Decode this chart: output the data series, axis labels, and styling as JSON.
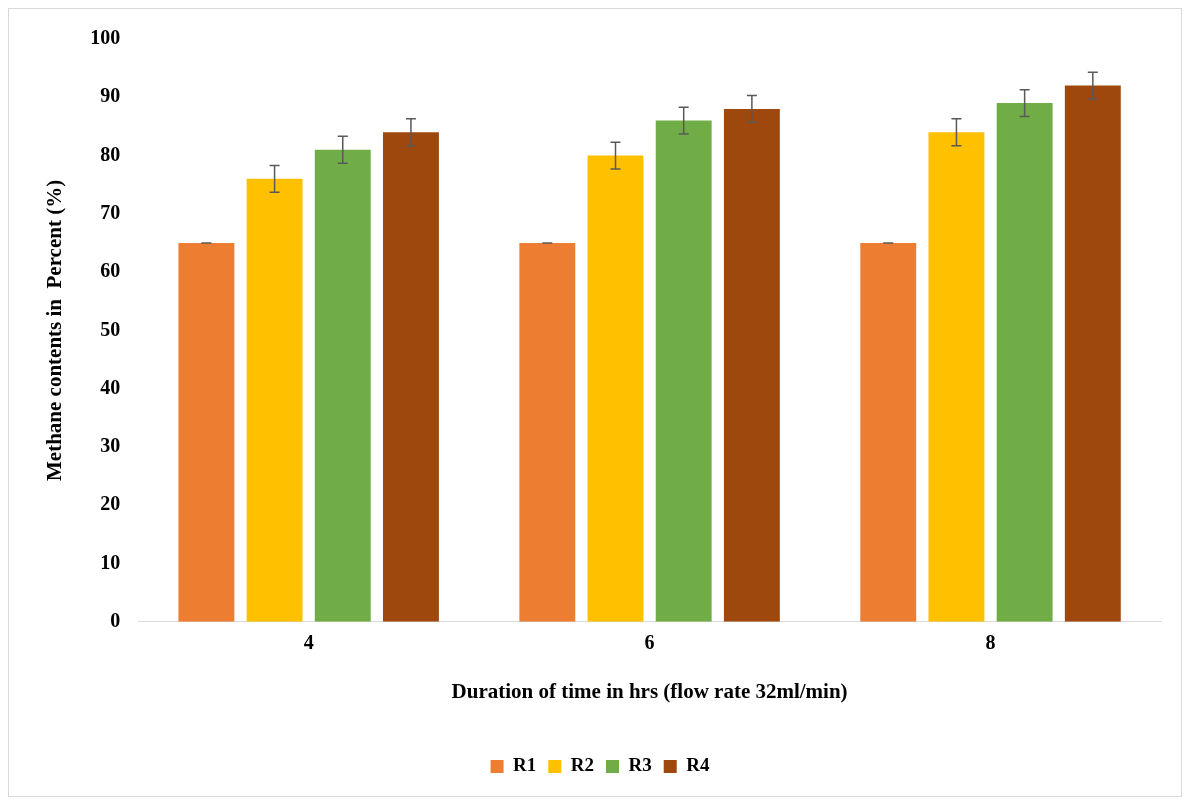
{
  "chart_data": {
    "type": "bar",
    "xlabel": "Duration of time in hrs (flow rate 32ml/min)",
    "ylabel": "Methane contents in  Percent (%)",
    "categories": [
      "4",
      "6",
      "8"
    ],
    "series": [
      {
        "name": "R1",
        "color": "#ed7d31",
        "values": [
          65,
          65,
          65
        ],
        "errors": [
          0,
          0,
          0
        ]
      },
      {
        "name": "R2",
        "color": "#ffc000",
        "values": [
          76,
          80,
          84
        ],
        "errors": [
          2.3,
          2.3,
          2.3
        ]
      },
      {
        "name": "R3",
        "color": "#70ad47",
        "values": [
          81,
          86,
          89
        ],
        "errors": [
          2.3,
          2.3,
          2.3
        ]
      },
      {
        "name": "R4",
        "color": "#9e480e",
        "values": [
          84,
          88,
          92
        ],
        "errors": [
          2.3,
          2.3,
          2.3
        ]
      }
    ],
    "ylim": [
      0,
      100
    ],
    "yticks": [
      0,
      10,
      20,
      30,
      40,
      50,
      60,
      70,
      80,
      90,
      100
    ],
    "grid": false,
    "legend": "bottom"
  }
}
